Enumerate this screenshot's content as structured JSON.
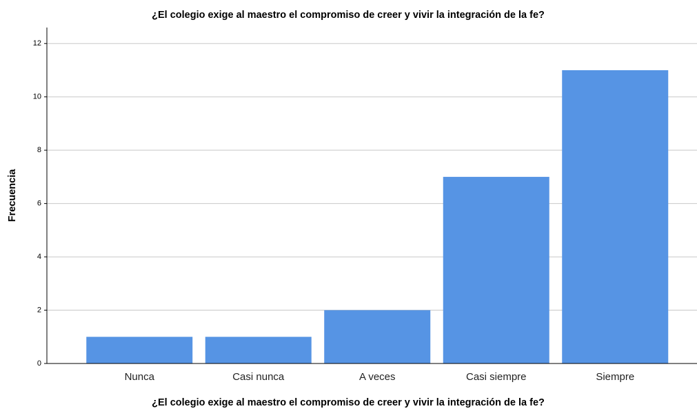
{
  "chart_data": {
    "type": "bar",
    "title": "¿El colegio exige al maestro el compromiso de creer y vivir la integración de la fe?",
    "x_label": "¿El colegio exige al maestro el compromiso de creer y vivir la integración de la fe?",
    "y_label": "Frecuencia",
    "categories": [
      "Nunca",
      "Casi nunca",
      "A veces",
      "Casi siempre",
      "Siempre"
    ],
    "values": [
      1,
      1,
      2,
      7,
      11
    ],
    "color": "#5694e4",
    "ylim": [
      0,
      12.6
    ],
    "yticks": [
      0,
      2,
      4,
      6,
      8,
      10,
      12
    ],
    "grid": true
  }
}
